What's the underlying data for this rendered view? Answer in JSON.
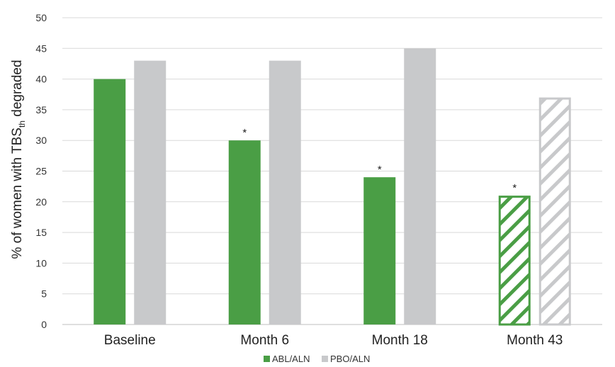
{
  "chart_data": {
    "type": "bar",
    "categories": [
      "Baseline",
      "Month 6",
      "Month 18",
      "Month 43"
    ],
    "series": [
      {
        "name": "ABL/ALN",
        "values": [
          40,
          30,
          24,
          21
        ],
        "color": "#4a9e45"
      },
      {
        "name": "PBO/ALN",
        "values": [
          43,
          43,
          45,
          37
        ],
        "color": "#c8c9cb"
      }
    ],
    "hatched_categories": [
      "Month 43"
    ],
    "significance_marks": [
      {
        "category": "Month 6",
        "series": "ABL/ALN",
        "text": "*"
      },
      {
        "category": "Month 18",
        "series": "ABL/ALN",
        "text": "*"
      },
      {
        "category": "Month 43",
        "series": "ABL/ALN",
        "text": "*"
      }
    ],
    "ylabel": {
      "prefix": "% of women with TBS",
      "subscript": "th",
      "suffix": " degraded"
    },
    "xlabel": "",
    "ylim": [
      0,
      50
    ],
    "yticks": [
      0,
      5,
      10,
      15,
      20,
      25,
      30,
      35,
      40,
      45,
      50
    ],
    "grid": true,
    "legend_position": "bottom-center"
  }
}
